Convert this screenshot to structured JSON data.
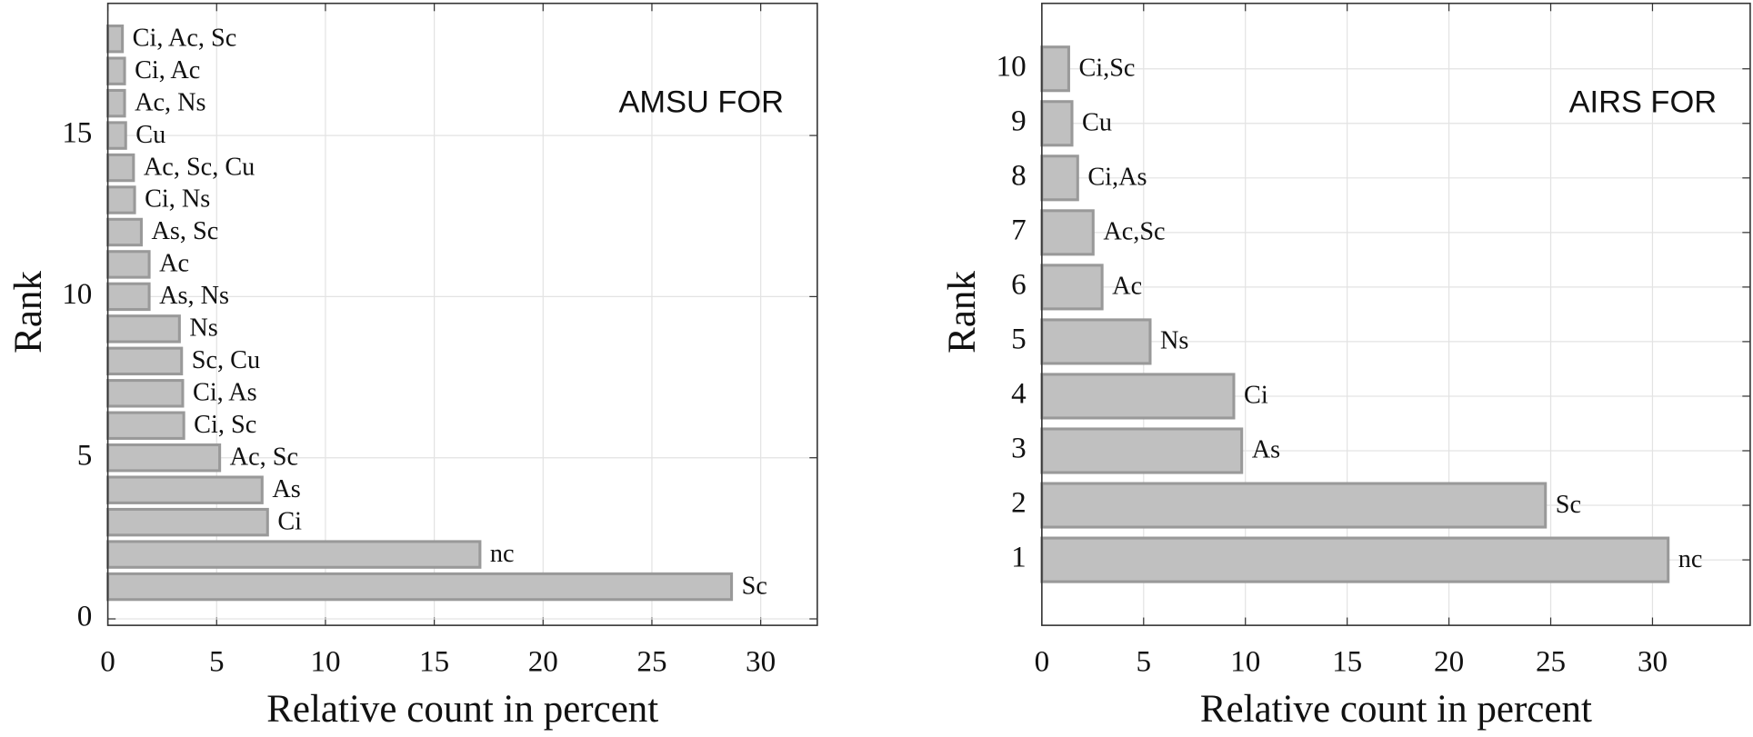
{
  "chart_data": [
    {
      "type": "hbar",
      "annotation": "AMSU FOR",
      "xlabel": "Relative count in percent",
      "ylabel": "Rank",
      "y": [
        1,
        2,
        3,
        4,
        5,
        6,
        7,
        8,
        9,
        10,
        11,
        12,
        13,
        14,
        15,
        16,
        17,
        18
      ],
      "values": [
        28.66,
        17.1,
        7.34,
        7.09,
        5.14,
        3.49,
        3.44,
        3.39,
        3.29,
        1.9,
        1.9,
        1.54,
        1.23,
        1.18,
        0.82,
        0.77,
        0.77,
        0.67
      ],
      "bar_labels": [
        "Sc",
        "nc",
        "Ci",
        "As",
        "Ac, Sc",
        "Ci, Sc",
        "Ci, As",
        "Sc, Cu",
        "Ns",
        "As, Ns",
        "Ac",
        "As, Sc",
        "Ci, Ns",
        "Ac, Sc, Cu",
        "Cu",
        "Ac, Ns",
        "Ci, Ac",
        "Ci, Ac, Sc"
      ],
      "color": "#c0c0c0",
      "edgecolor": "#999999",
      "xlim": [
        0,
        32.6
      ],
      "ylim": [
        -0.2,
        19.1
      ],
      "xticks": [
        0,
        5,
        10,
        15,
        20,
        25,
        30
      ],
      "yticks": [
        0,
        5,
        10,
        15
      ],
      "grid": true
    },
    {
      "type": "hbar",
      "annotation": "AIRS FOR",
      "xlabel": "Relative count in percent",
      "ylabel": "Rank",
      "y": [
        1,
        2,
        3,
        4,
        5,
        6,
        7,
        8,
        9,
        10
      ],
      "values": [
        30.77,
        24.74,
        9.82,
        9.43,
        5.32,
        2.96,
        2.52,
        1.76,
        1.48,
        1.32
      ],
      "bar_labels": [
        "nc",
        "Sc",
        "As",
        "Ci",
        "Ns",
        "Ac",
        "Ac,Sc",
        "Ci,As",
        "Cu",
        "Ci,Sc"
      ],
      "color": "#c0c0c0",
      "edgecolor": "#999999",
      "xlim": [
        0,
        34.8
      ],
      "ylim": [
        -0.2,
        11.2
      ],
      "xticks": [
        0,
        5,
        10,
        15,
        20,
        25,
        30
      ],
      "yticks": [
        1,
        2,
        3,
        4,
        5,
        6,
        7,
        8,
        9,
        10
      ],
      "grid": true
    }
  ]
}
